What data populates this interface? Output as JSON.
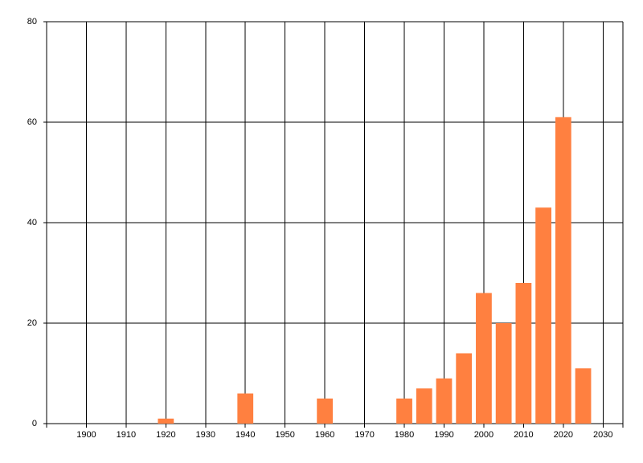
{
  "chart_data": {
    "type": "bar",
    "x": [
      1920,
      1940,
      1960,
      1980,
      1985,
      1990,
      1995,
      2000,
      2005,
      2010,
      2015,
      2020,
      2025
    ],
    "values": [
      1,
      6,
      5,
      5,
      7,
      9,
      14,
      26,
      20,
      28,
      43,
      61,
      11
    ],
    "color": "#ff8040",
    "bar_width": 4,
    "xlim": [
      1890,
      2035
    ],
    "xticks": [
      1900,
      1910,
      1920,
      1930,
      1940,
      1950,
      1960,
      1970,
      1980,
      1990,
      2000,
      2010,
      2020,
      2030
    ],
    "ylim": [
      0,
      80
    ],
    "yticks": [
      0,
      20,
      40,
      60,
      80
    ],
    "grid": true
  }
}
